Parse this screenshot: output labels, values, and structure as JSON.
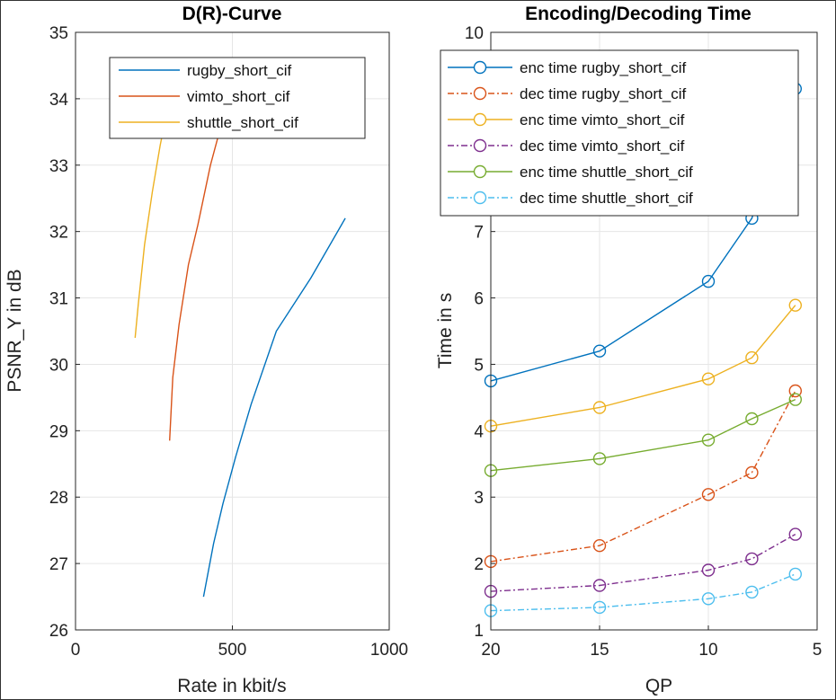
{
  "chart_data": [
    {
      "type": "line",
      "title": "D(R)-Curve",
      "xlabel": "Rate in kbit/s",
      "ylabel": "PSNR_Y in dB",
      "xlim": [
        0,
        1000
      ],
      "ylim": [
        26,
        35
      ],
      "xticks": [
        "0",
        "500",
        "1000"
      ],
      "yticks": [
        "26",
        "27",
        "28",
        "29",
        "30",
        "31",
        "32",
        "33",
        "34",
        "35"
      ],
      "grid": true,
      "legend": "top-right",
      "series": [
        {
          "name": "rugby_short_cif",
          "color": "#0072BD",
          "points": [
            [
              408,
              26.5
            ],
            [
              440,
              27.3
            ],
            [
              470,
              27.9
            ],
            [
              510,
              28.6
            ],
            [
              560,
              29.4
            ],
            [
              640,
              30.5
            ],
            [
              750,
              31.3
            ],
            [
              860,
              32.2
            ]
          ]
        },
        {
          "name": "vimto_short_cif",
          "color": "#D95319",
          "points": [
            [
              300,
              28.85
            ],
            [
              310,
              29.8
            ],
            [
              330,
              30.6
            ],
            [
              360,
              31.5
            ],
            [
              390,
              32.1
            ],
            [
              430,
              33.0
            ],
            [
              470,
              33.7
            ],
            [
              510,
              34.5
            ]
          ]
        },
        {
          "name": "shuttle_short_cif",
          "color": "#EDB120",
          "points": [
            [
              190,
              30.4
            ],
            [
              200,
              30.9
            ],
            [
              220,
              31.8
            ],
            [
              245,
              32.6
            ],
            [
              270,
              33.3
            ],
            [
              300,
              34.0
            ],
            [
              330,
              34.6
            ]
          ]
        }
      ]
    },
    {
      "type": "line",
      "title": "Encoding/Decoding Time",
      "xlabel": "QP",
      "ylabel": "Time in s",
      "xlim": [
        20,
        5
      ],
      "ylim": [
        1,
        10
      ],
      "xticks": [
        "20",
        "15",
        "10",
        "5"
      ],
      "yticks": [
        "1",
        "2",
        "3",
        "4",
        "5",
        "6",
        "7",
        "8",
        "9",
        "10"
      ],
      "x": [
        20,
        15,
        10,
        8,
        6
      ],
      "grid": true,
      "legend": "top",
      "series": [
        {
          "name": "enc time rugby_short_cif",
          "color": "#0072BD",
          "dash": false,
          "values": [
            4.75,
            5.2,
            6.25,
            7.2,
            9.15
          ]
        },
        {
          "name": "dec time rugby_short_cif",
          "color": "#D95319",
          "dash": true,
          "values": [
            2.03,
            2.27,
            3.04,
            3.37,
            4.6
          ]
        },
        {
          "name": "enc time vimto_short_cif",
          "color": "#EDB120",
          "dash": false,
          "values": [
            4.07,
            4.35,
            4.78,
            5.1,
            5.89
          ]
        },
        {
          "name": "dec time vimto_short_cif",
          "color": "#7E2F8E",
          "dash": true,
          "values": [
            1.58,
            1.67,
            1.9,
            2.07,
            2.44
          ]
        },
        {
          "name": "enc time shuttle_short_cif",
          "color": "#77AC30",
          "dash": false,
          "values": [
            3.4,
            3.58,
            3.86,
            4.18,
            4.47
          ]
        },
        {
          "name": "dec time shuttle_short_cif",
          "color": "#4DBEEE",
          "dash": true,
          "values": [
            1.29,
            1.34,
            1.47,
            1.57,
            1.84
          ]
        }
      ]
    }
  ]
}
